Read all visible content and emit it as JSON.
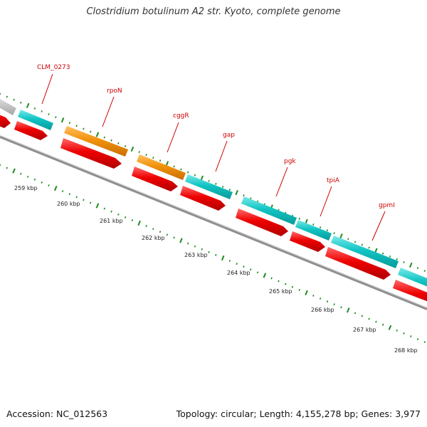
{
  "title": "Clostridium botulinum A2 str. Kyoto, complete genome",
  "footer": {
    "accession": "Accession: NC_012563",
    "summary": "Topology: circular; Length: 4,155,278 bp; Genes: 3,977"
  },
  "colors": {
    "cds_teal": "#11c4c4",
    "cds_orange": "#f2920c",
    "cds_grey": "#c8c8c8",
    "gene_red": "#ee0000",
    "tick_green": "#1e8a1e",
    "label_red": "#cc0000",
    "backbone_grey": "#8f8f8f"
  },
  "scale": {
    "unit": "kbp",
    "labels": [
      "259 kbp",
      "260 kbp",
      "261 kbp",
      "262 kbp",
      "263 kbp",
      "264 kbp",
      "265 kbp",
      "266 kbp",
      "267 kbp",
      "268 kbp"
    ]
  },
  "gene_labels": [
    "CLM_0273",
    "rpoN",
    "cggR",
    "gap",
    "pgk",
    "tpiA",
    "gpmI"
  ]
}
